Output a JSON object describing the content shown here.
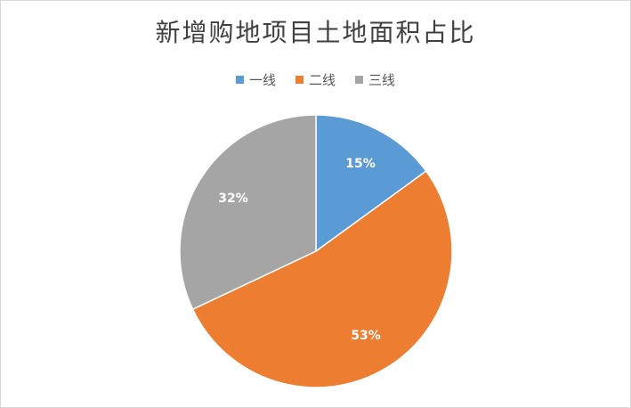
{
  "chart_data": {
    "type": "pie",
    "title": "新增购地项目土地面积占比",
    "categories": [
      "一线",
      "二线",
      "三线"
    ],
    "values": [
      15,
      53,
      32
    ],
    "labels": [
      "15%",
      "53%",
      "32%"
    ],
    "colors": [
      "#5b9bd5",
      "#ed7d31",
      "#a5a5a5"
    ],
    "legend_position": "top",
    "start": "12 o'clock, clockwise"
  }
}
